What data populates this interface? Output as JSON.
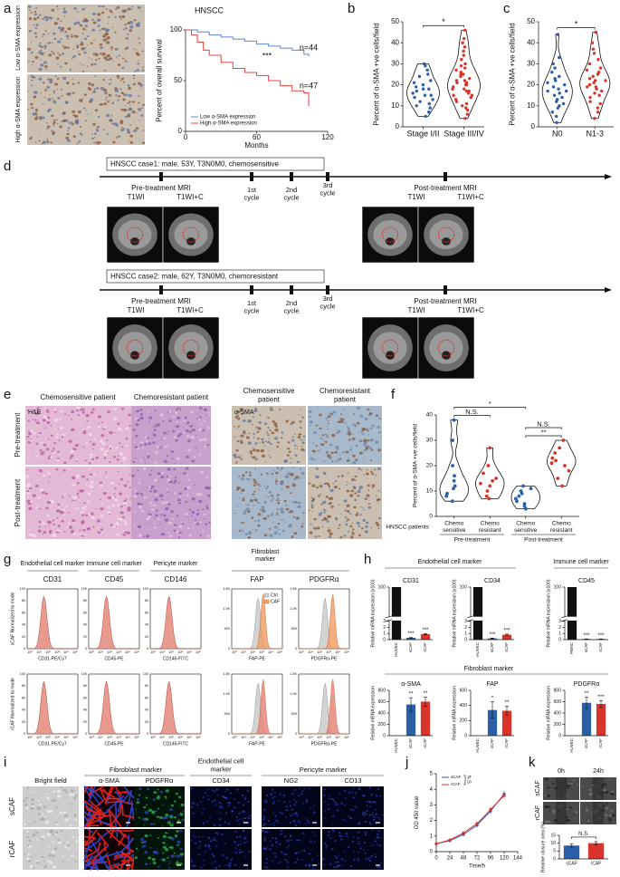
{
  "figure": {
    "panel_labels": [
      "a",
      "b",
      "c",
      "d",
      "e",
      "f",
      "g",
      "h",
      "i",
      "j",
      "k"
    ],
    "a": {
      "image_labels": [
        "Low α-SMA expression",
        "High α-SMA expression"
      ]
    },
    "d": {
      "case1": {
        "title": "HNSCC case1: male, 53Y, T3N0M0, chemosensitive",
        "pre": "Pre-treatment MRI",
        "post": "Post-treatment MRI",
        "seq": [
          "T1WI",
          "T1WI+C"
        ],
        "cycles": [
          [
            "1st",
            "cycle"
          ],
          [
            "2nd",
            "cycle"
          ],
          [
            "3rd",
            "cycle"
          ]
        ]
      },
      "case2": {
        "title": "HNSCC case2: male, 62Y, T3N0M0, chemoresistant",
        "pre": "Pre-treatment MRI",
        "post": "Post-treatment MRI",
        "seq": [
          "T1WI",
          "T1WI+C"
        ],
        "cycles": [
          [
            "1st",
            "cycle"
          ],
          [
            "2nd",
            "cycle"
          ],
          [
            "3rd",
            "cycle"
          ]
        ]
      }
    },
    "e": {
      "columns_he": [
        "Chemosensitive patient",
        "Chemoresistant patient"
      ],
      "columns_sma": [
        [
          "Chemosensitive",
          "patient"
        ],
        [
          "Chemoresistant",
          "patient"
        ]
      ],
      "rows": [
        "Pre-treatment",
        "Post-treatment"
      ],
      "stains": [
        "H&E",
        "α-SMA"
      ]
    },
    "g": {
      "groups": [
        "Endothelial cell marker",
        "Immune cell marker",
        "Pericyte marker",
        [
          "Fibroblast",
          "marker"
        ]
      ],
      "markers": [
        "CD31",
        "CD45",
        "CD146",
        "FAP",
        "PDGFRα"
      ],
      "axis_labels": [
        "CD31-PE/Cy7",
        "CD45-PE",
        "CD146-FITC",
        "FAP-PE",
        "PDGFRα-PE"
      ],
      "row_labels": [
        "sCAF Normalized to mode",
        "rCAF Normalized to mode"
      ],
      "legend": [
        "Ctrl",
        "CAF"
      ],
      "mode_ticks": [
        "0",
        "20",
        "40",
        "60",
        "80",
        "100"
      ],
      "count_ticks": [
        "0",
        "500",
        "1.0K",
        "1.5K"
      ],
      "log_ticks": [
        "10⁰",
        "10¹",
        "10²",
        "10³",
        "10⁴",
        "10⁵"
      ]
    },
    "h": {
      "groups": [
        "Endothelial cell marker",
        "Immune cell marker",
        "Fibroblast marker"
      ]
    },
    "i": {
      "groups": [
        "Fibroblast marker",
        [
          "Endothelial cell",
          "marker"
        ],
        "Pericyte marker"
      ],
      "columns": [
        "Bright field",
        "α-SMA",
        "PDGFRα",
        "CD34",
        "NG2",
        "CD13"
      ],
      "rows": [
        "sCAF",
        "rCAF"
      ]
    },
    "k": {
      "times": [
        "0h",
        "24h"
      ],
      "rows": [
        "sCAF",
        "rCAF"
      ]
    }
  },
  "chart_data": [
    {
      "type": "line",
      "step": true,
      "title": "HNSCC",
      "x_label": "Months",
      "y_label": "Percent of overall survival",
      "xlim": [
        0,
        120
      ],
      "xticks": [
        0,
        60,
        120
      ],
      "ylim": [
        0,
        100
      ],
      "yticks": [
        0,
        50,
        100
      ],
      "annotations": [
        "***",
        "n=44",
        "n=47"
      ],
      "legend": "lower left",
      "series": [
        {
          "name": "Low α-SMA expression",
          "color": "#5b87c9",
          "x": [
            0,
            5,
            10,
            20,
            30,
            40,
            50,
            60,
            70,
            80,
            90,
            100,
            104
          ],
          "values": [
            100,
            100,
            98,
            95,
            93,
            91,
            89,
            86,
            84,
            82,
            80,
            76,
            74
          ]
        },
        {
          "name": "High α-SMA expression",
          "color": "#e8453c",
          "x": [
            0,
            5,
            10,
            15,
            20,
            30,
            40,
            50,
            60,
            70,
            80,
            90,
            100,
            104
          ],
          "values": [
            100,
            95,
            88,
            80,
            75,
            68,
            62,
            58,
            55,
            50,
            45,
            40,
            38,
            25
          ]
        }
      ]
    },
    {
      "type": "violin",
      "y_label": "Percent of α-SMA +ve cells/field",
      "categories": [
        "Stage I/II",
        "Stage III/IV"
      ],
      "colors": [
        "#2b5fa8",
        "#d9342b"
      ],
      "ylim": [
        0,
        50
      ],
      "yticks": [
        0,
        10,
        20,
        30,
        40,
        50
      ],
      "comparisons": [
        {
          "groups": [
            0,
            1
          ],
          "label": "*"
        }
      ],
      "values": [
        [
          5,
          7,
          9,
          10,
          11,
          12,
          13,
          14,
          15,
          15,
          16,
          17,
          18,
          18,
          19,
          20,
          21,
          22,
          24,
          25,
          27,
          29,
          30
        ],
        [
          4,
          6,
          8,
          9,
          10,
          11,
          12,
          13,
          14,
          15,
          15,
          16,
          17,
          17,
          18,
          18,
          19,
          20,
          20,
          21,
          21,
          22,
          22,
          23,
          24,
          25,
          25,
          26,
          27,
          28,
          29,
          30,
          32,
          34,
          36,
          38,
          40,
          42,
          46
        ]
      ]
    },
    {
      "type": "violin",
      "y_label": "Percent of α-SMA +ve cells/field",
      "categories": [
        "N0",
        "N1-3"
      ],
      "colors": [
        "#2b5fa8",
        "#d9342b"
      ],
      "ylim": [
        0,
        50
      ],
      "yticks": [
        0,
        10,
        20,
        30,
        40,
        50
      ],
      "comparisons": [
        {
          "groups": [
            0,
            1
          ],
          "label": "*"
        }
      ],
      "values": [
        [
          2,
          5,
          7,
          9,
          10,
          11,
          12,
          13,
          14,
          15,
          16,
          17,
          17,
          18,
          19,
          20,
          21,
          22,
          23,
          24,
          26,
          28,
          30,
          33,
          44
        ],
        [
          4,
          7,
          9,
          11,
          12,
          14,
          15,
          16,
          17,
          18,
          19,
          19,
          20,
          21,
          22,
          22,
          23,
          24,
          25,
          26,
          27,
          28,
          30,
          32,
          35,
          37,
          40,
          45
        ]
      ]
    },
    {
      "type": "violin",
      "y_label": "Percent of α-SMA +ve cells/field",
      "x_label": "HNSCC patients",
      "categories": [
        [
          "Chemo",
          "sensitive"
        ],
        [
          "Chemo",
          "resistant"
        ],
        [
          "Chemo",
          "sensitive"
        ],
        [
          "Chemo",
          "resistant"
        ]
      ],
      "groups": [
        {
          "label": "Pre-treatment",
          "categories": [
            0,
            1
          ]
        },
        {
          "label": "Post-treatment",
          "categories": [
            2,
            3
          ]
        }
      ],
      "colors": [
        "#2b5fa8",
        "#d9342b",
        "#2b5fa8",
        "#d9342b"
      ],
      "ylim": [
        0,
        40
      ],
      "yticks": [
        0,
        10,
        20,
        30,
        40
      ],
      "comparisons": [
        {
          "groups": [
            2,
            3
          ],
          "label": "**"
        },
        {
          "groups": [
            0,
            1
          ],
          "label": "N.S."
        },
        {
          "groups": [
            2,
            3
          ],
          "label": "N.S."
        },
        {
          "groups": [
            0,
            2
          ],
          "label": "*"
        }
      ],
      "values": [
        [
          6,
          8,
          9,
          11,
          12,
          14,
          16,
          20,
          30,
          38
        ],
        [
          7,
          8,
          10,
          12,
          13,
          14,
          15,
          17,
          20,
          27
        ],
        [
          3,
          4,
          5,
          6,
          7,
          8,
          9,
          10,
          11,
          12
        ],
        [
          12,
          15,
          18,
          20,
          21,
          22,
          23,
          25,
          27,
          30
        ]
      ]
    },
    {
      "type": "bar",
      "title": "CD31",
      "y_label": "Relative mRNA expression (x100)",
      "categories": [
        "HUVEC",
        "sCAF",
        "rCAF"
      ],
      "colors": [
        "#111111",
        "#2b5fa8",
        "#d9342b"
      ],
      "values": [
        100,
        0.3,
        0.9
      ],
      "errors": [
        0,
        0.05,
        0.1
      ],
      "significance": [
        null,
        "***",
        "***"
      ],
      "ylim": [
        0,
        100
      ],
      "ybreak": [
        3,
        90
      ],
      "yticks": [
        0,
        1,
        2,
        3,
        100
      ]
    },
    {
      "type": "bar",
      "title": "CD34",
      "y_label": "Relative mRNA expression (x100)",
      "categories": [
        "HUVEC",
        "sCAF",
        "rCAF"
      ],
      "colors": [
        "#111111",
        "#2b5fa8",
        "#d9342b"
      ],
      "values": [
        100,
        0.2,
        0.8
      ],
      "errors": [
        0,
        0.05,
        0.1
      ],
      "significance": [
        null,
        "***",
        "***"
      ],
      "ylim": [
        0,
        100
      ],
      "ybreak": [
        3,
        90
      ],
      "yticks": [
        0,
        1,
        2,
        3,
        100
      ]
    },
    {
      "type": "bar",
      "title": "CD45",
      "y_label": "Relative mRNA expression (x100)",
      "categories": [
        "PBMC",
        "sCAF",
        "rCAF"
      ],
      "colors": [
        "#111111",
        "#2b5fa8",
        "#d9342b"
      ],
      "values": [
        100,
        0.1,
        0.1
      ],
      "errors": [
        0,
        0.02,
        0.02
      ],
      "significance": [
        null,
        "***",
        "***"
      ],
      "ylim": [
        0,
        100
      ],
      "ybreak": [
        3,
        90
      ],
      "yticks": [
        0,
        1,
        2,
        3,
        100
      ]
    },
    {
      "type": "bar",
      "title": "α-SMA",
      "y_label": "Relative mRNA expression",
      "categories": [
        "HUVEC",
        "sCAF",
        "rCAF"
      ],
      "colors": [
        "#111111",
        "#2b5fa8",
        "#d9342b"
      ],
      "values": [
        0,
        550,
        600
      ],
      "errors": [
        0,
        120,
        80
      ],
      "significance": [
        null,
        "**",
        "**"
      ],
      "ylim": [
        0,
        800
      ],
      "yticks": [
        0,
        200,
        400,
        600,
        800
      ]
    },
    {
      "type": "bar",
      "title": "FAP",
      "y_label": "Relative mRNA expression",
      "categories": [
        "HUVEC",
        "sCAF",
        "rCAF"
      ],
      "colors": [
        "#111111",
        "#2b5fa8",
        "#d9342b"
      ],
      "values": [
        0,
        340,
        330
      ],
      "errors": [
        0,
        110,
        60
      ],
      "significance": [
        null,
        "*",
        "**"
      ],
      "ylim": [
        0,
        600
      ],
      "yticks": [
        0,
        200,
        400,
        600
      ]
    },
    {
      "type": "bar",
      "title": "PDGFRα",
      "y_label": "Relative mRNA expression",
      "categories": [
        "HUVEC",
        "sCAF",
        "rCAF"
      ],
      "colors": [
        "#111111",
        "#2b5fa8",
        "#d9342b"
      ],
      "values": [
        0,
        580,
        560
      ],
      "errors": [
        0,
        100,
        60
      ],
      "significance": [
        null,
        "**",
        "***"
      ],
      "ylim": [
        0,
        800
      ],
      "yticks": [
        0,
        200,
        400,
        600,
        800
      ]
    },
    {
      "type": "line",
      "markers": true,
      "x_label": "Time/h",
      "y_label": "OD 450 value",
      "annotations": [
        "N.S."
      ],
      "legend": "upper left",
      "x": [
        0,
        24,
        48,
        72,
        96,
        120
      ],
      "xlim": [
        0,
        144
      ],
      "xticks": [
        0,
        24,
        48,
        72,
        96,
        120,
        144
      ],
      "ylim": [
        0,
        5
      ],
      "yticks": [
        0,
        1,
        2,
        3,
        4,
        5
      ],
      "series": [
        {
          "name": "sCAF",
          "color": "#2b5fa8",
          "values": [
            0.5,
            0.7,
            1.1,
            1.7,
            2.6,
            3.7
          ],
          "errors": [
            0.05,
            0.05,
            0.1,
            0.15,
            0.2,
            0.2
          ]
        },
        {
          "name": "rCAF",
          "color": "#d9342b",
          "values": [
            0.5,
            0.75,
            1.2,
            1.8,
            2.7,
            3.6
          ],
          "errors": [
            0.05,
            0.05,
            0.1,
            0.15,
            0.2,
            0.2
          ]
        }
      ]
    },
    {
      "type": "bar",
      "y_label": "Relative closure area (%)",
      "categories": [
        "sCAF",
        "rCAF"
      ],
      "colors": [
        "#2b5fa8",
        "#d9342b"
      ],
      "values": [
        8.5,
        10
      ],
      "errors": [
        1,
        1
      ],
      "comparisons": [
        {
          "groups": [
            0,
            1
          ],
          "label": "N.S."
        }
      ],
      "ylim": [
        0,
        15
      ],
      "yticks": [
        0,
        5,
        10,
        15
      ]
    }
  ]
}
